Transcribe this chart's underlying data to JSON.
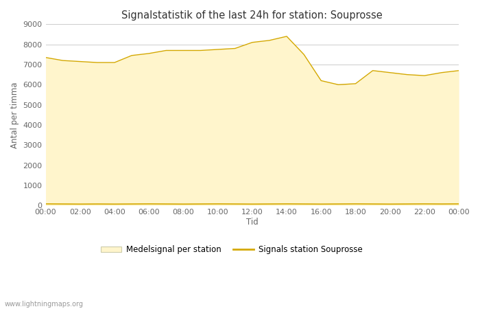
{
  "title": "Signalstatistik of the last 24h for station: Souprosse",
  "xlabel": "Tid",
  "ylabel": "Antal per timma",
  "fill_color": "#FFF5CC",
  "line_color": "#D4A800",
  "fill_edge_color": "#E8C840",
  "background_color": "#FFFFFF",
  "grid_color": "#CCCCCC",
  "ylim": [
    0,
    9000
  ],
  "yticks": [
    0,
    1000,
    2000,
    3000,
    4000,
    5000,
    6000,
    7000,
    8000,
    9000
  ],
  "xtick_labels": [
    "00:00",
    "02:00",
    "04:00",
    "06:00",
    "08:00",
    "10:00",
    "12:00",
    "14:00",
    "16:00",
    "18:00",
    "20:00",
    "22:00",
    "00:00"
  ],
  "legend_fill_label": "Medelsignal per station",
  "legend_line_label": "Signals station Souprosse",
  "watermark": "www.lightningmaps.org",
  "x": [
    0,
    1,
    2,
    3,
    4,
    5,
    6,
    7,
    8,
    9,
    10,
    11,
    12,
    13,
    14,
    15,
    16,
    17,
    18,
    19,
    20,
    21,
    22,
    23,
    24
  ],
  "y": [
    7350,
    7200,
    7150,
    7100,
    7100,
    7450,
    7550,
    7700,
    7700,
    7700,
    7750,
    7800,
    8100,
    8200,
    8400,
    7500,
    6200,
    6000,
    6050,
    6700,
    6600,
    6500,
    6450,
    6600,
    6700
  ],
  "station_y": [
    80,
    75,
    70,
    75,
    70,
    75,
    80,
    75,
    70,
    75,
    80,
    75,
    70,
    75,
    80,
    75,
    70,
    75,
    80,
    75,
    70,
    75,
    80,
    75,
    80
  ]
}
